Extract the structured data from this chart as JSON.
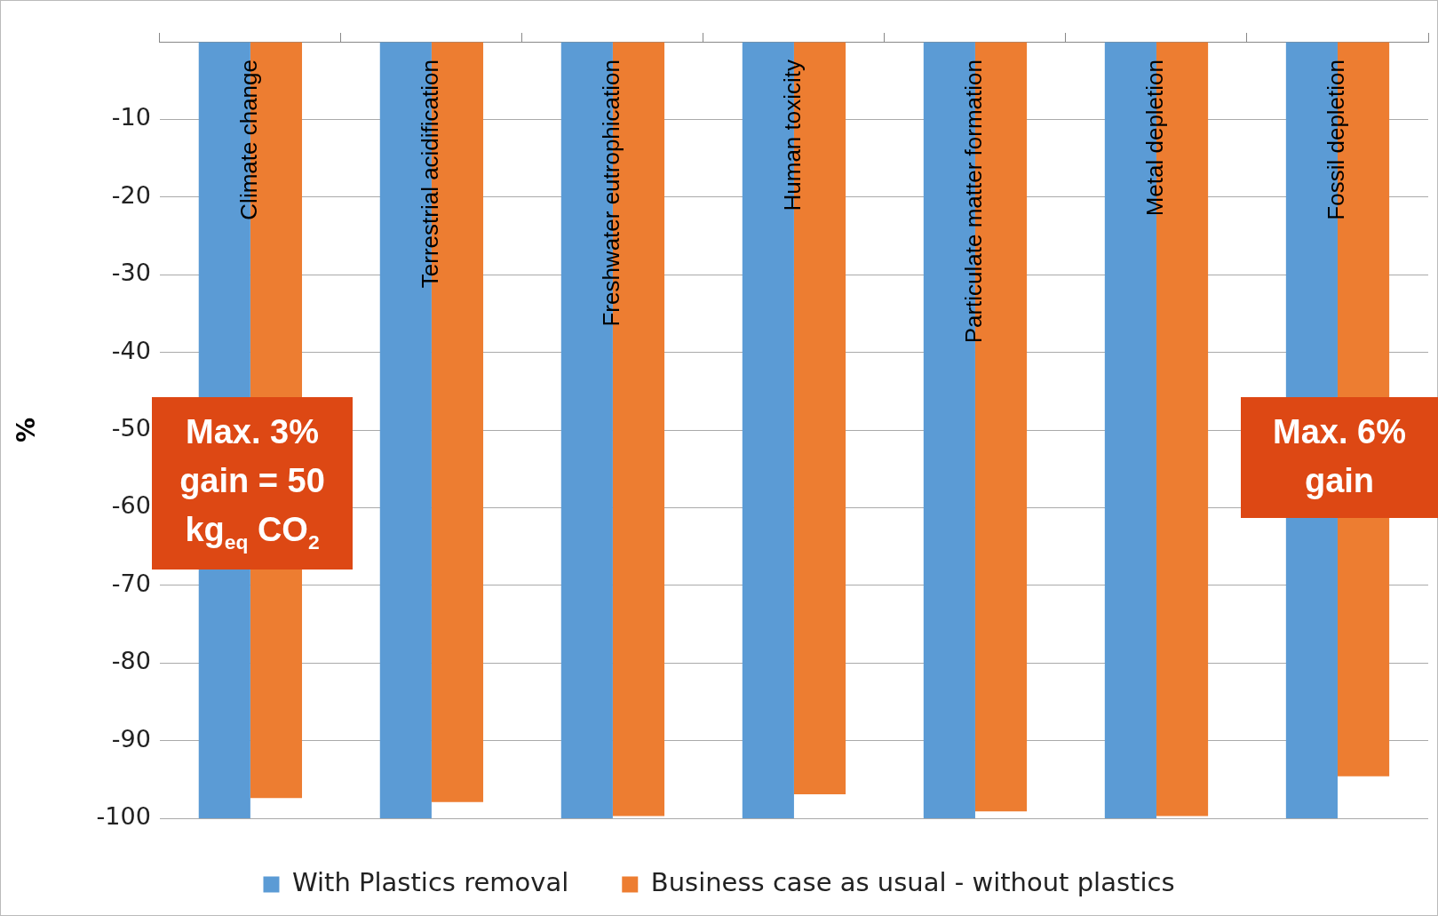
{
  "chart_data": {
    "type": "bar",
    "ylabel": "%",
    "categories": [
      "Climate change",
      "Terrestrial acidification",
      "Freshwater eutrophication",
      "Human toxicity",
      "Particulate matter formation",
      "Metal depletion",
      "Fossil depletion"
    ],
    "series": [
      {
        "name": "With Plastics removal",
        "color": "#5b9bd5",
        "values": [
          -100,
          -100,
          -100,
          -100,
          -100,
          -100,
          -100
        ]
      },
      {
        "name": "Business case as usual - without plastics",
        "color": "#ed7d31",
        "values": [
          -97.4,
          -97.9,
          -99.7,
          -96.9,
          -99.1,
          -99.7,
          -94.6
        ]
      }
    ],
    "ylim": [
      -100,
      0
    ],
    "yticks": [
      {
        "value": 0,
        "label": null
      },
      -10,
      -20,
      -30,
      -40,
      -50,
      -60,
      -70,
      -80,
      -90,
      -100
    ],
    "grid": "y",
    "legend": "bottom",
    "annotations": [
      "Max. 3% gain = 50 kg$_{eq}$ CO$_{2}$",
      "Max. 6% gain"
    ]
  }
}
